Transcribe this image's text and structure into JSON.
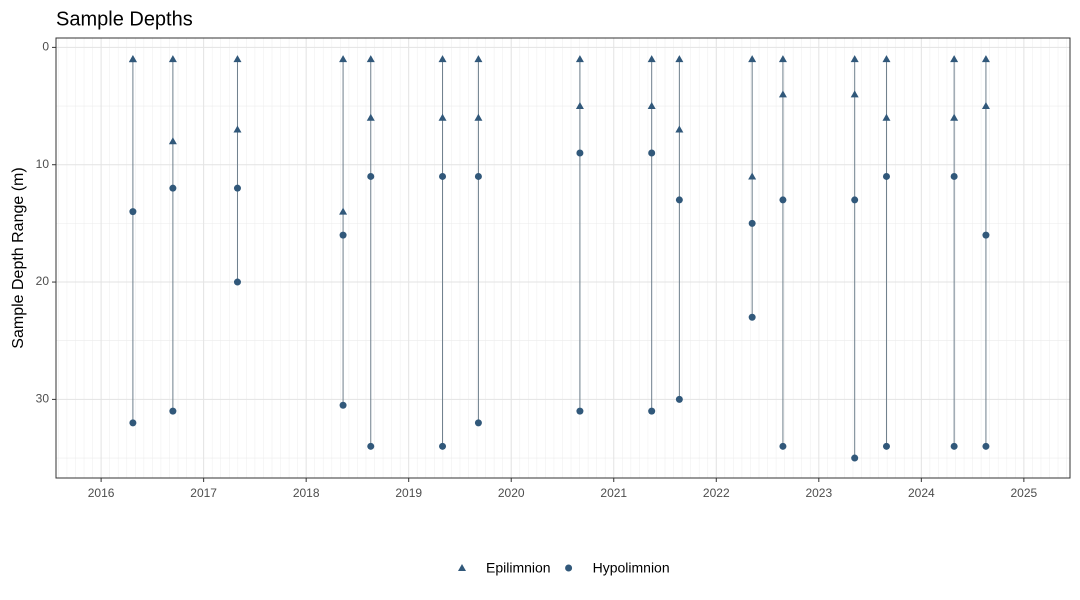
{
  "chart_data": {
    "type": "range-scatter",
    "title": "Sample Depths",
    "y_label": "Sample Depth Range (m)",
    "xlim": [
      2015.56,
      2025.45
    ],
    "xticks": [
      2016,
      2017,
      2018,
      2019,
      2020,
      2021,
      2022,
      2023,
      2024,
      2025
    ],
    "ylim": [
      -0.8,
      36.7
    ],
    "y_reversed": true,
    "yticks": [
      0,
      10,
      20,
      30
    ],
    "grid": true,
    "legend": "bottom",
    "line_color": "#6e7f8c",
    "series": [
      {
        "name": "Epilimnion",
        "color": "#31587a",
        "marker": "triangle",
        "x": [
          2016.31,
          2016.31,
          2016.7,
          2016.7,
          2017.33,
          2017.33,
          2018.36,
          2018.36,
          2018.63,
          2018.63,
          2019.33,
          2019.33,
          2019.68,
          2019.68,
          2020.67,
          2020.67,
          2021.37,
          2021.37,
          2021.64,
          2021.64,
          2022.35,
          2022.35,
          2022.65,
          2022.65,
          2023.35,
          2023.35,
          2023.66,
          2023.66,
          2024.32,
          2024.32,
          2024.63,
          2024.63
        ],
        "values": [
          1,
          1,
          1,
          8,
          1,
          7,
          1,
          14,
          1,
          6,
          1,
          6,
          1,
          6,
          1,
          5,
          1,
          5,
          1,
          7,
          1,
          11,
          1,
          4,
          1,
          4,
          1,
          6,
          1,
          6,
          1,
          5
        ]
      },
      {
        "name": "Hypolimnion",
        "color": "#31587a",
        "marker": "circle",
        "x": [
          2016.31,
          2016.31,
          2016.7,
          2016.7,
          2017.33,
          2017.33,
          2018.36,
          2018.36,
          2018.63,
          2018.63,
          2019.33,
          2019.33,
          2019.68,
          2019.68,
          2020.67,
          2020.67,
          2021.37,
          2021.37,
          2021.64,
          2021.64,
          2022.35,
          2022.35,
          2022.65,
          2022.65,
          2023.35,
          2023.35,
          2023.66,
          2023.66,
          2024.32,
          2024.32,
          2024.63,
          2024.63
        ],
        "values": [
          14,
          32,
          12,
          31,
          12,
          20,
          16,
          30.5,
          11,
          34,
          11,
          34,
          11,
          32,
          9,
          31,
          9,
          31,
          13,
          30,
          15,
          23,
          13,
          34,
          13,
          35,
          11,
          34,
          11,
          34,
          16,
          34
        ]
      }
    ]
  }
}
